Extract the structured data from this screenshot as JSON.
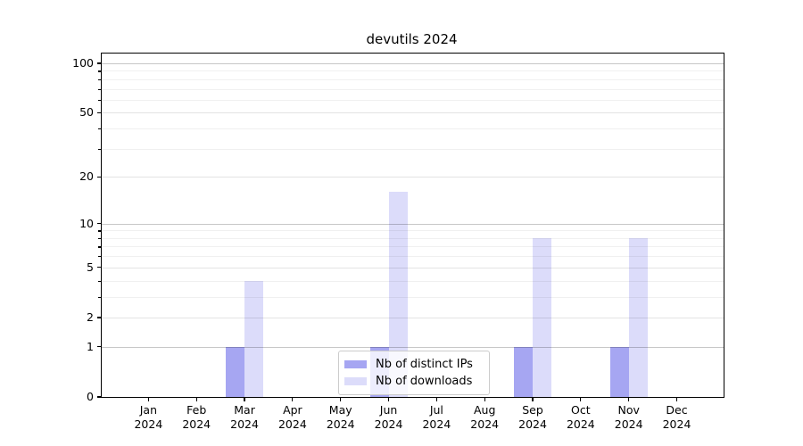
{
  "title": "devutils 2024",
  "chart_data": {
    "type": "bar",
    "title": "devutils 2024",
    "categories": [
      "Jan",
      "Feb",
      "Mar",
      "Apr",
      "May",
      "Jun",
      "Jul",
      "Aug",
      "Sep",
      "Oct",
      "Nov",
      "Dec"
    ],
    "year_label": "2024",
    "series": [
      {
        "name": "Nb of distinct IPs",
        "color": "#a6a6f2",
        "values": [
          0,
          0,
          1,
          0,
          0,
          1,
          0,
          0,
          1,
          0,
          1,
          0
        ]
      },
      {
        "name": "Nb of downloads",
        "color": "#dcdcfa",
        "values": [
          0,
          0,
          4,
          0,
          0,
          16,
          0,
          0,
          8,
          0,
          8,
          0
        ]
      }
    ],
    "xlabel": "",
    "ylabel": "",
    "yscale": "log1p",
    "ylim": [
      0,
      115
    ],
    "y_major_ticks": [
      0,
      1,
      2,
      5,
      10,
      20,
      50,
      100
    ],
    "y_minor_ticks": [
      3,
      4,
      6,
      7,
      8,
      9,
      30,
      40,
      60,
      70,
      80,
      90
    ],
    "grid": "on",
    "legend_position": "bottom-center",
    "colors": {
      "decade_grid": "rgba(0,0,0,0.22)",
      "major_grid": "rgba(0,0,0,0.11)",
      "minor_grid": "rgba(0,0,0,0.06)",
      "axis": "#000000",
      "text": "#000000",
      "background": "#ffffff"
    }
  }
}
